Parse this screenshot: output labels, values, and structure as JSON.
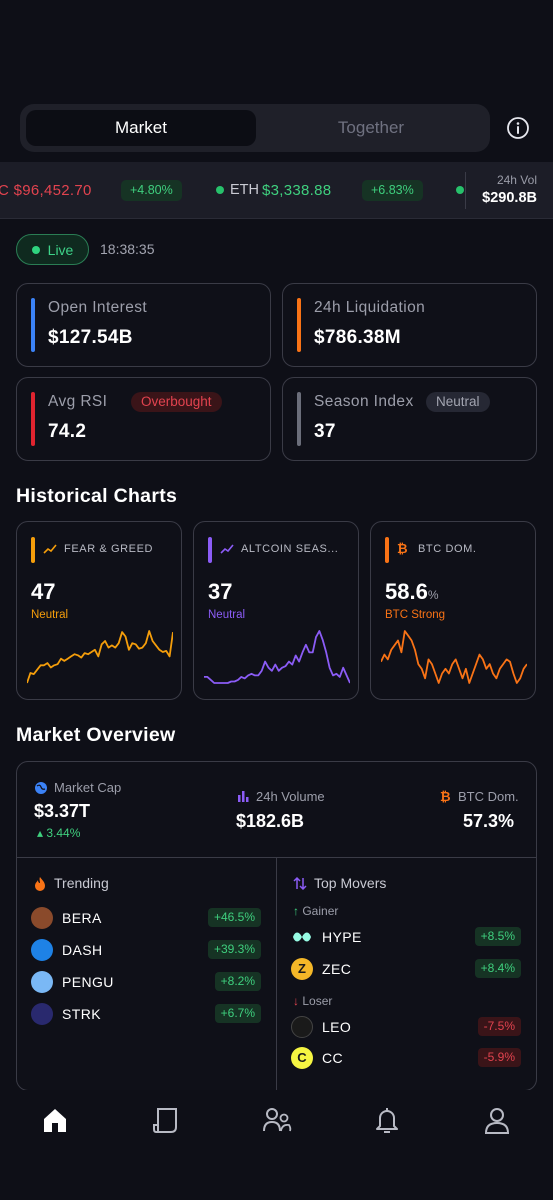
{
  "tabs": {
    "active": "Market",
    "inactive": "Together"
  },
  "ticker": {
    "items": [
      {
        "symbol": "BTC",
        "symbol_visible": "C",
        "price": "$96,452.70",
        "change": "+4.80%"
      },
      {
        "symbol": "ETH",
        "price": "$3,338.88",
        "change": "+6.83%"
      }
    ],
    "volume_label": "24h Vol",
    "volume_value": "$290.8B"
  },
  "live": {
    "label": "Live",
    "time": "18:38:35"
  },
  "stats": {
    "open_interest": {
      "label": "Open Interest",
      "value": "$127.54B",
      "color": "#3b82f6"
    },
    "liquidation": {
      "label": "24h Liquidation",
      "value": "$786.38M",
      "color": "#f97316"
    },
    "avg_rsi": {
      "label": "Avg RSI",
      "value": "74.2",
      "tag": "Overbought",
      "color": "#e0242f"
    },
    "season_index": {
      "label": "Season Index",
      "value": "37",
      "tag": "Neutral",
      "color": "#6b6e7a"
    }
  },
  "historical": {
    "title": "Historical Charts",
    "cards": [
      {
        "title": "FEAR & GREED",
        "value": "47",
        "unit": "",
        "status": "Neutral",
        "color": "#f59e0b",
        "points": [
          6,
          15,
          14,
          18,
          22,
          22,
          24,
          20,
          22,
          23,
          28,
          26,
          28,
          30,
          32,
          31,
          29,
          33,
          32,
          34,
          36,
          30,
          41,
          44,
          38,
          40,
          38,
          42,
          52,
          48,
          36,
          42,
          41,
          37,
          38,
          42,
          53,
          44,
          40,
          36,
          34,
          35,
          30,
          52
        ]
      },
      {
        "title": "ALTCOIN SEAS...",
        "value": "37",
        "unit": "",
        "status": "Neutral",
        "color": "#8b5cf6",
        "points": [
          14,
          14,
          12,
          10,
          10,
          10,
          10,
          10,
          11,
          11,
          12,
          14,
          13,
          15,
          16,
          15,
          15,
          18,
          24,
          20,
          18,
          22,
          18,
          20,
          21,
          24,
          22,
          28,
          24,
          30,
          35,
          30,
          30,
          40,
          44,
          38,
          30,
          20,
          15,
          16,
          14,
          20,
          15,
          10
        ]
      },
      {
        "title": "BTC DOM.",
        "value": "58.6",
        "unit": "%",
        "status": "BTC Strong",
        "color": "#f97316",
        "points": [
          45,
          48,
          46,
          50,
          52,
          54,
          49,
          58,
          56,
          54,
          50,
          44,
          42,
          38,
          46,
          44,
          40,
          36,
          40,
          42,
          40,
          44,
          46,
          42,
          38,
          42,
          36,
          40,
          44,
          48,
          46,
          42,
          44,
          40,
          38,
          42,
          44,
          46,
          45,
          40,
          36,
          38,
          42,
          44
        ]
      }
    ]
  },
  "overview": {
    "title": "Market Overview",
    "market_cap": {
      "label": "Market Cap",
      "value": "$3.37T",
      "change": "3.44%"
    },
    "volume": {
      "label": "24h Volume",
      "value": "$182.6B"
    },
    "btc_dom": {
      "label": "BTC Dom.",
      "value": "57.3%"
    },
    "trending": {
      "title": "Trending",
      "items": [
        {
          "symbol": "BERA",
          "change": "+46.5%",
          "color": "#8a4a2b"
        },
        {
          "symbol": "DASH",
          "change": "+39.3%",
          "color": "#1e82e6"
        },
        {
          "symbol": "PENGU",
          "change": "+8.2%",
          "color": "#7ab8f5"
        },
        {
          "symbol": "STRK",
          "change": "+6.7%",
          "color": "#29296e"
        }
      ]
    },
    "movers": {
      "title": "Top Movers",
      "gainer_label": "Gainer",
      "loser_label": "Loser",
      "gainers": [
        {
          "symbol": "HYPE",
          "change": "+8.5%",
          "color": "#97fce4"
        },
        {
          "symbol": "ZEC",
          "change": "+8.4%",
          "color": "#f4b728"
        }
      ],
      "losers": [
        {
          "symbol": "LEO",
          "change": "-7.5%",
          "color": "#1a1a1a"
        },
        {
          "symbol": "CC",
          "change": "-5.9%",
          "color": "#f5f542"
        }
      ]
    }
  },
  "nav": [
    "home-icon",
    "news-icon",
    "community-icon",
    "bell-icon",
    "profile-icon"
  ]
}
